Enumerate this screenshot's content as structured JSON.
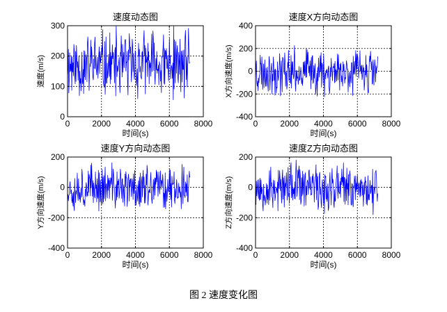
{
  "figure_caption": "图 2  速度变化图",
  "line_color": "#0000ff",
  "chart_data": [
    {
      "type": "line",
      "title": "速度动态图",
      "xlabel": "时间(s)",
      "ylabel": "速度(m/s)",
      "xlim": [
        0,
        8000
      ],
      "ylim": [
        0,
        300
      ],
      "xticks": [
        0,
        2000,
        4000,
        6000,
        8000
      ],
      "yticks": [
        0,
        100,
        200,
        300
      ],
      "x_start": 0,
      "x_end": 7200,
      "n_points": 290,
      "center": 170,
      "amplitude": 135,
      "seed": 11,
      "grid": true,
      "series": [
        {
          "color": "#0000ff"
        }
      ]
    },
    {
      "type": "line",
      "title": "速度X方向动态图",
      "xlabel": "时间(s)",
      "ylabel": "X方向速度(m/s)",
      "xlim": [
        0,
        8000
      ],
      "ylim": [
        -400,
        400
      ],
      "xticks": [
        0,
        2000,
        4000,
        6000,
        8000
      ],
      "yticks": [
        -400,
        -200,
        0,
        200,
        400
      ],
      "x_start": 0,
      "x_end": 7200,
      "n_points": 290,
      "center": 0,
      "amplitude": 240,
      "seed": 23,
      "grid": true,
      "series": [
        {
          "color": "#0000ff"
        }
      ]
    },
    {
      "type": "line",
      "title": "速度Y方向动态图",
      "xlabel": "时间(s)",
      "ylabel": "Y方向速度(m/s)",
      "xlim": [
        0,
        8000
      ],
      "ylim": [
        -400,
        200
      ],
      "xticks": [
        0,
        2000,
        4000,
        6000,
        8000
      ],
      "yticks": [
        -400,
        -200,
        0,
        200
      ],
      "x_start": 0,
      "x_end": 7200,
      "n_points": 290,
      "center": 0,
      "amplitude": 180,
      "seed": 37,
      "grid": true,
      "series": [
        {
          "color": "#0000ff"
        }
      ]
    },
    {
      "type": "line",
      "title": "速度Z方向动态图",
      "xlabel": "时间(s)",
      "ylabel": "Z方向速度(m/s)",
      "xlim": [
        0,
        8000
      ],
      "ylim": [
        -400,
        200
      ],
      "xticks": [
        0,
        2000,
        4000,
        6000,
        8000
      ],
      "yticks": [
        -400,
        -200,
        0,
        200
      ],
      "x_start": 0,
      "x_end": 7200,
      "n_points": 290,
      "center": 0,
      "amplitude": 190,
      "seed": 53,
      "grid": true,
      "series": [
        {
          "color": "#0000ff"
        }
      ]
    }
  ]
}
